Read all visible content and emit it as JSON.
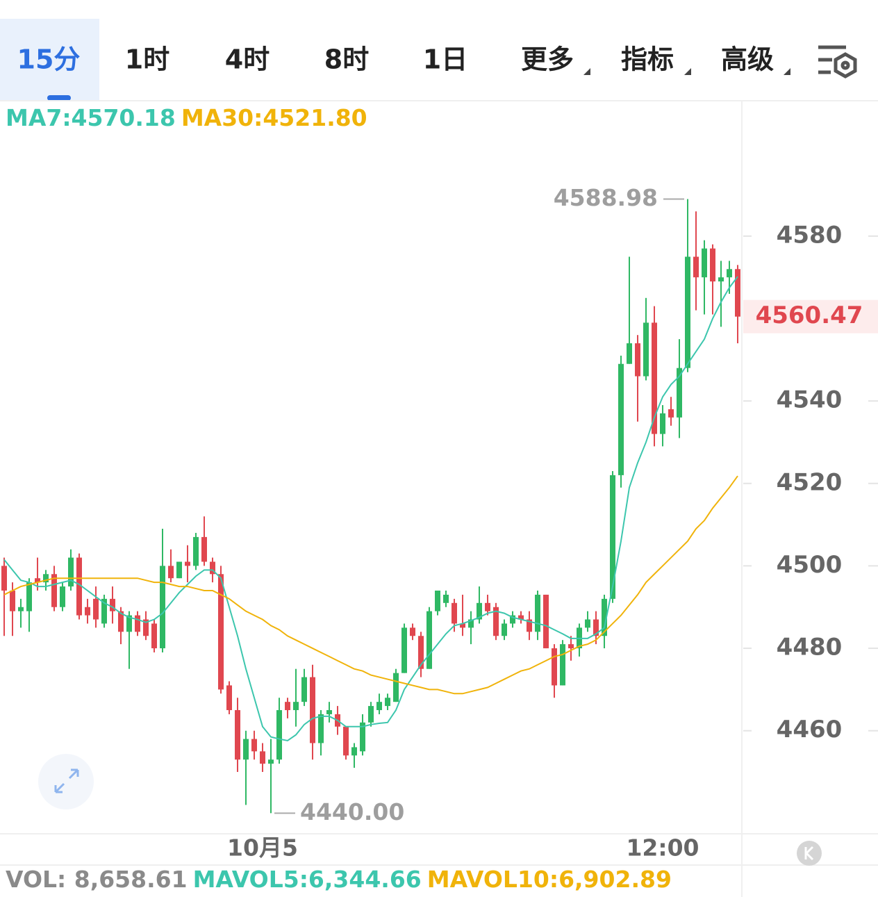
{
  "tabs": [
    "15分",
    "1时",
    "4时",
    "8时",
    "1日",
    "更多",
    "指标",
    "高级"
  ],
  "chart_data": {
    "type": "candlestick",
    "legend": [
      {
        "label": "MA7:4570.18",
        "color": "#3cc6ad"
      },
      {
        "label": "MA30:4521.80",
        "color": "#f0b30a"
      }
    ],
    "categories": [
      null,
      null,
      null,
      null,
      null,
      null,
      null,
      null,
      null,
      null,
      null,
      null,
      null,
      null,
      null,
      null,
      null,
      null,
      null,
      null,
      null,
      null,
      null,
      null,
      null,
      null,
      null,
      null,
      null,
      null,
      null,
      "10月5",
      null,
      null,
      null,
      null,
      null,
      null,
      null,
      null,
      null,
      null,
      null,
      null,
      null,
      null,
      null,
      null,
      null,
      null,
      null,
      null,
      null,
      null,
      null,
      null,
      null,
      null,
      null,
      null,
      null,
      null,
      null,
      null,
      null,
      null,
      null,
      null,
      null,
      null,
      null,
      null,
      null,
      null,
      null,
      null,
      null,
      null,
      null,
      "12:00",
      null,
      null,
      null,
      null,
      null,
      null,
      null,
      null,
      null
    ],
    "open": [
      4500,
      4494,
      4489,
      4489,
      4497,
      4496,
      4498,
      4490,
      4495,
      4502,
      4490,
      4492,
      4486,
      4492,
      4489,
      4484,
      4488,
      4487,
      4486,
      4480,
      4500,
      4497,
      4501,
      4500,
      4507,
      4501,
      4498,
      4471,
      4465,
      4453,
      4458,
      4455,
      4452,
      4453,
      4467,
      4465,
      4467,
      4473,
      4457,
      4464,
      4464,
      4461,
      4454,
      4455,
      4462,
      4465,
      4466,
      4467,
      4474,
      4485,
      4483,
      4475,
      4489,
      4491,
      4491,
      4486,
      4485,
      4487,
      4491,
      4490,
      4483,
      4486,
      4488,
      4487,
      4484,
      4493,
      4480,
      4471,
      4481,
      4480,
      4485,
      4487,
      4483,
      4492,
      4522,
      4549,
      4554,
      4546,
      4559,
      4532,
      4538,
      4536,
      4548,
      4575,
      4570,
      4577,
      4569,
      4570,
      4572
    ],
    "high": [
      4502,
      4496,
      4492,
      4497,
      4502,
      4499,
      4500,
      4496,
      4504,
      4503,
      4492,
      4495,
      4493,
      4495,
      4490,
      4489,
      4489,
      4489,
      4487,
      4509,
      4504,
      4501,
      4505,
      4508,
      4512,
      4502,
      4500,
      4472,
      4468,
      4460,
      4460,
      4457,
      4458,
      4468,
      4468,
      4475,
      4475,
      4476,
      4465,
      4467,
      4466,
      4461,
      4457,
      4464,
      4467,
      4469,
      4469,
      4475,
      4486,
      4486,
      4484,
      4490,
      4494,
      4494,
      4492,
      4493,
      4489,
      4495,
      4493,
      4491,
      4487,
      4489,
      4489,
      4489,
      4494,
      4493,
      4481,
      4482,
      4483,
      4486,
      4489,
      4489,
      4493,
      4523,
      4551,
      4575,
      4556,
      4565,
      4563,
      4539,
      4541,
      4555,
      4588.98,
      4586,
      4579,
      4578,
      4574,
      4574,
      4573
    ],
    "low": [
      4483,
      4483,
      4485,
      4484,
      4494,
      4494,
      4489,
      4489,
      4494,
      4487,
      4486,
      4485,
      4485,
      4486,
      4481,
      4475,
      4483,
      4482,
      4479,
      4479,
      4496,
      4497,
      4496,
      4499,
      4500,
      4496,
      4469,
      4464,
      4450,
      4442,
      4453,
      4450,
      4440,
      4452,
      4463,
      4461,
      4466,
      4453,
      4454,
      4462,
      4459,
      4453,
      4451,
      4454,
      4461,
      4464,
      4465,
      4467,
      4474,
      4482,
      4473,
      4475,
      4488,
      4490,
      4484,
      4483,
      4481,
      4486,
      4488,
      4482,
      4482,
      4485,
      4486,
      4482,
      4482,
      4480,
      4468,
      4471,
      4477,
      4478,
      4484,
      4481,
      4480,
      4491,
      4519,
      4549,
      4535,
      4545,
      4529,
      4529,
      4534,
      4531,
      4547,
      4562,
      4561,
      4561,
      4558,
      4566,
      4554
    ],
    "close": [
      4494,
      4489,
      4490,
      4496,
      4496,
      4498,
      4490,
      4495,
      4502,
      4488,
      4488,
      4487,
      4492,
      4489,
      4484,
      4488,
      4484,
      4483,
      4480,
      4500,
      4497,
      4501,
      4500,
      4507,
      4501,
      4498,
      4470,
      4465,
      4453,
      4458,
      4455,
      4452,
      4453,
      4465,
      4465,
      4467,
      4473,
      4457,
      4464,
      4465,
      4461,
      4454,
      4456,
      4462,
      4466,
      4467,
      4468,
      4474,
      4485,
      4483,
      4475,
      4489,
      4494,
      4493,
      4486,
      4485,
      4487,
      4491,
      4489,
      4483,
      4486,
      4488,
      4487,
      4484,
      4493,
      4480,
      4471,
      4481,
      4480,
      4485,
      4487,
      4483,
      4492,
      4522,
      4549,
      4554,
      4546,
      4559,
      4532,
      4537,
      4536,
      4548,
      4575,
      4570,
      4577,
      4569,
      4570,
      4572,
      4560.47
    ],
    "up_color": "#2fb864",
    "down_color": "#e0474f",
    "lines": [
      {
        "color": "#3cc6ad",
        "values": [
          4501.5,
          4499,
          4496.5,
          4496,
          4495,
          4495,
          4495.5,
          4496,
          4496.5,
          4495.5,
          4494,
          4492.5,
          4491,
          4490,
          4488.5,
          4487.5,
          4487,
          4486.3,
          4487,
          4488.5,
          4491,
          4493.5,
          4495.5,
          4497.5,
          4499,
          4499,
          4497,
          4490,
          4483,
          4475,
          4468,
          4461,
          4458.5,
          4458,
          4457.6,
          4459,
          4461.5,
          4463,
          4463.5,
          4463.5,
          4462.5,
          4461,
          4461,
          4461,
          4461.5,
          4461.8,
          4462,
          4465,
          4470,
          4473,
          4476,
          4478.5,
          4481,
          4483.5,
          4485.5,
          4486,
          4486.7,
          4487.5,
          4488.5,
          4489,
          4488.5,
          4487.5,
          4487,
          4486.5,
          4486,
          4485.5,
          4484.5,
          4483.5,
          4482.4,
          4482.4,
          4482.4,
          4483.5,
          4485,
          4495,
          4506,
          4519,
          4525,
          4530,
          4536,
          4541,
          4544,
          4546,
          4549,
          4552,
          4555,
          4560,
          4564,
          4567.5,
          4570.18
        ]
      },
      {
        "color": "#f0b30a",
        "values": [
          4493,
          4494,
          4495,
          4495.5,
          4496,
          4496.5,
          4497,
          4497,
          4497,
          4497,
          4497,
          4497,
          4497,
          4497,
          4497,
          4497,
          4497,
          4496.5,
          4496,
          4496,
          4495.5,
          4495,
          4495,
          4494.5,
          4494,
          4494,
          4493,
          4492,
          4490.5,
          4489,
          4488,
          4487,
          4485.5,
          4484.5,
          4483,
          4482,
          4481,
          4480,
          4479,
          4478,
          4477,
          4476,
          4475,
          4474.5,
          4473.5,
          4473,
          4472.5,
          4472,
          4471.5,
          4471,
          4470.5,
          4470,
          4470,
          4469.5,
          4469,
          4469,
          4469.5,
          4470,
          4470.5,
          4471.5,
          4472.5,
          4473.5,
          4474.5,
          4475,
          4476,
          4477,
          4478,
          4478.5,
          4479.5,
          4480.5,
          4481,
          4482,
          4484,
          4486,
          4488,
          4490.5,
          4493,
          4496,
          4498,
          4500,
          4502,
          4504,
          4506,
          4509,
          4511,
          4514,
          4516.5,
          4519,
          4521.8
        ]
      }
    ],
    "ylim": [
      4435,
      4612
    ],
    "yticks": [
      4460,
      4480,
      4500,
      4520,
      4540,
      4580
    ],
    "high_label": 4588.98,
    "low_label": {
      "value": 4440,
      "label": "4440.00"
    },
    "last_price": 4560.47,
    "volume_legend": [
      {
        "label": "VOL: 8,658.61",
        "color": "#8a8a8a"
      },
      {
        "label": "MAVOL5:6,344.66",
        "color": "#3cc6ad"
      },
      {
        "label": "MAVOL10:6,902.89",
        "color": "#f0b30a"
      }
    ]
  }
}
